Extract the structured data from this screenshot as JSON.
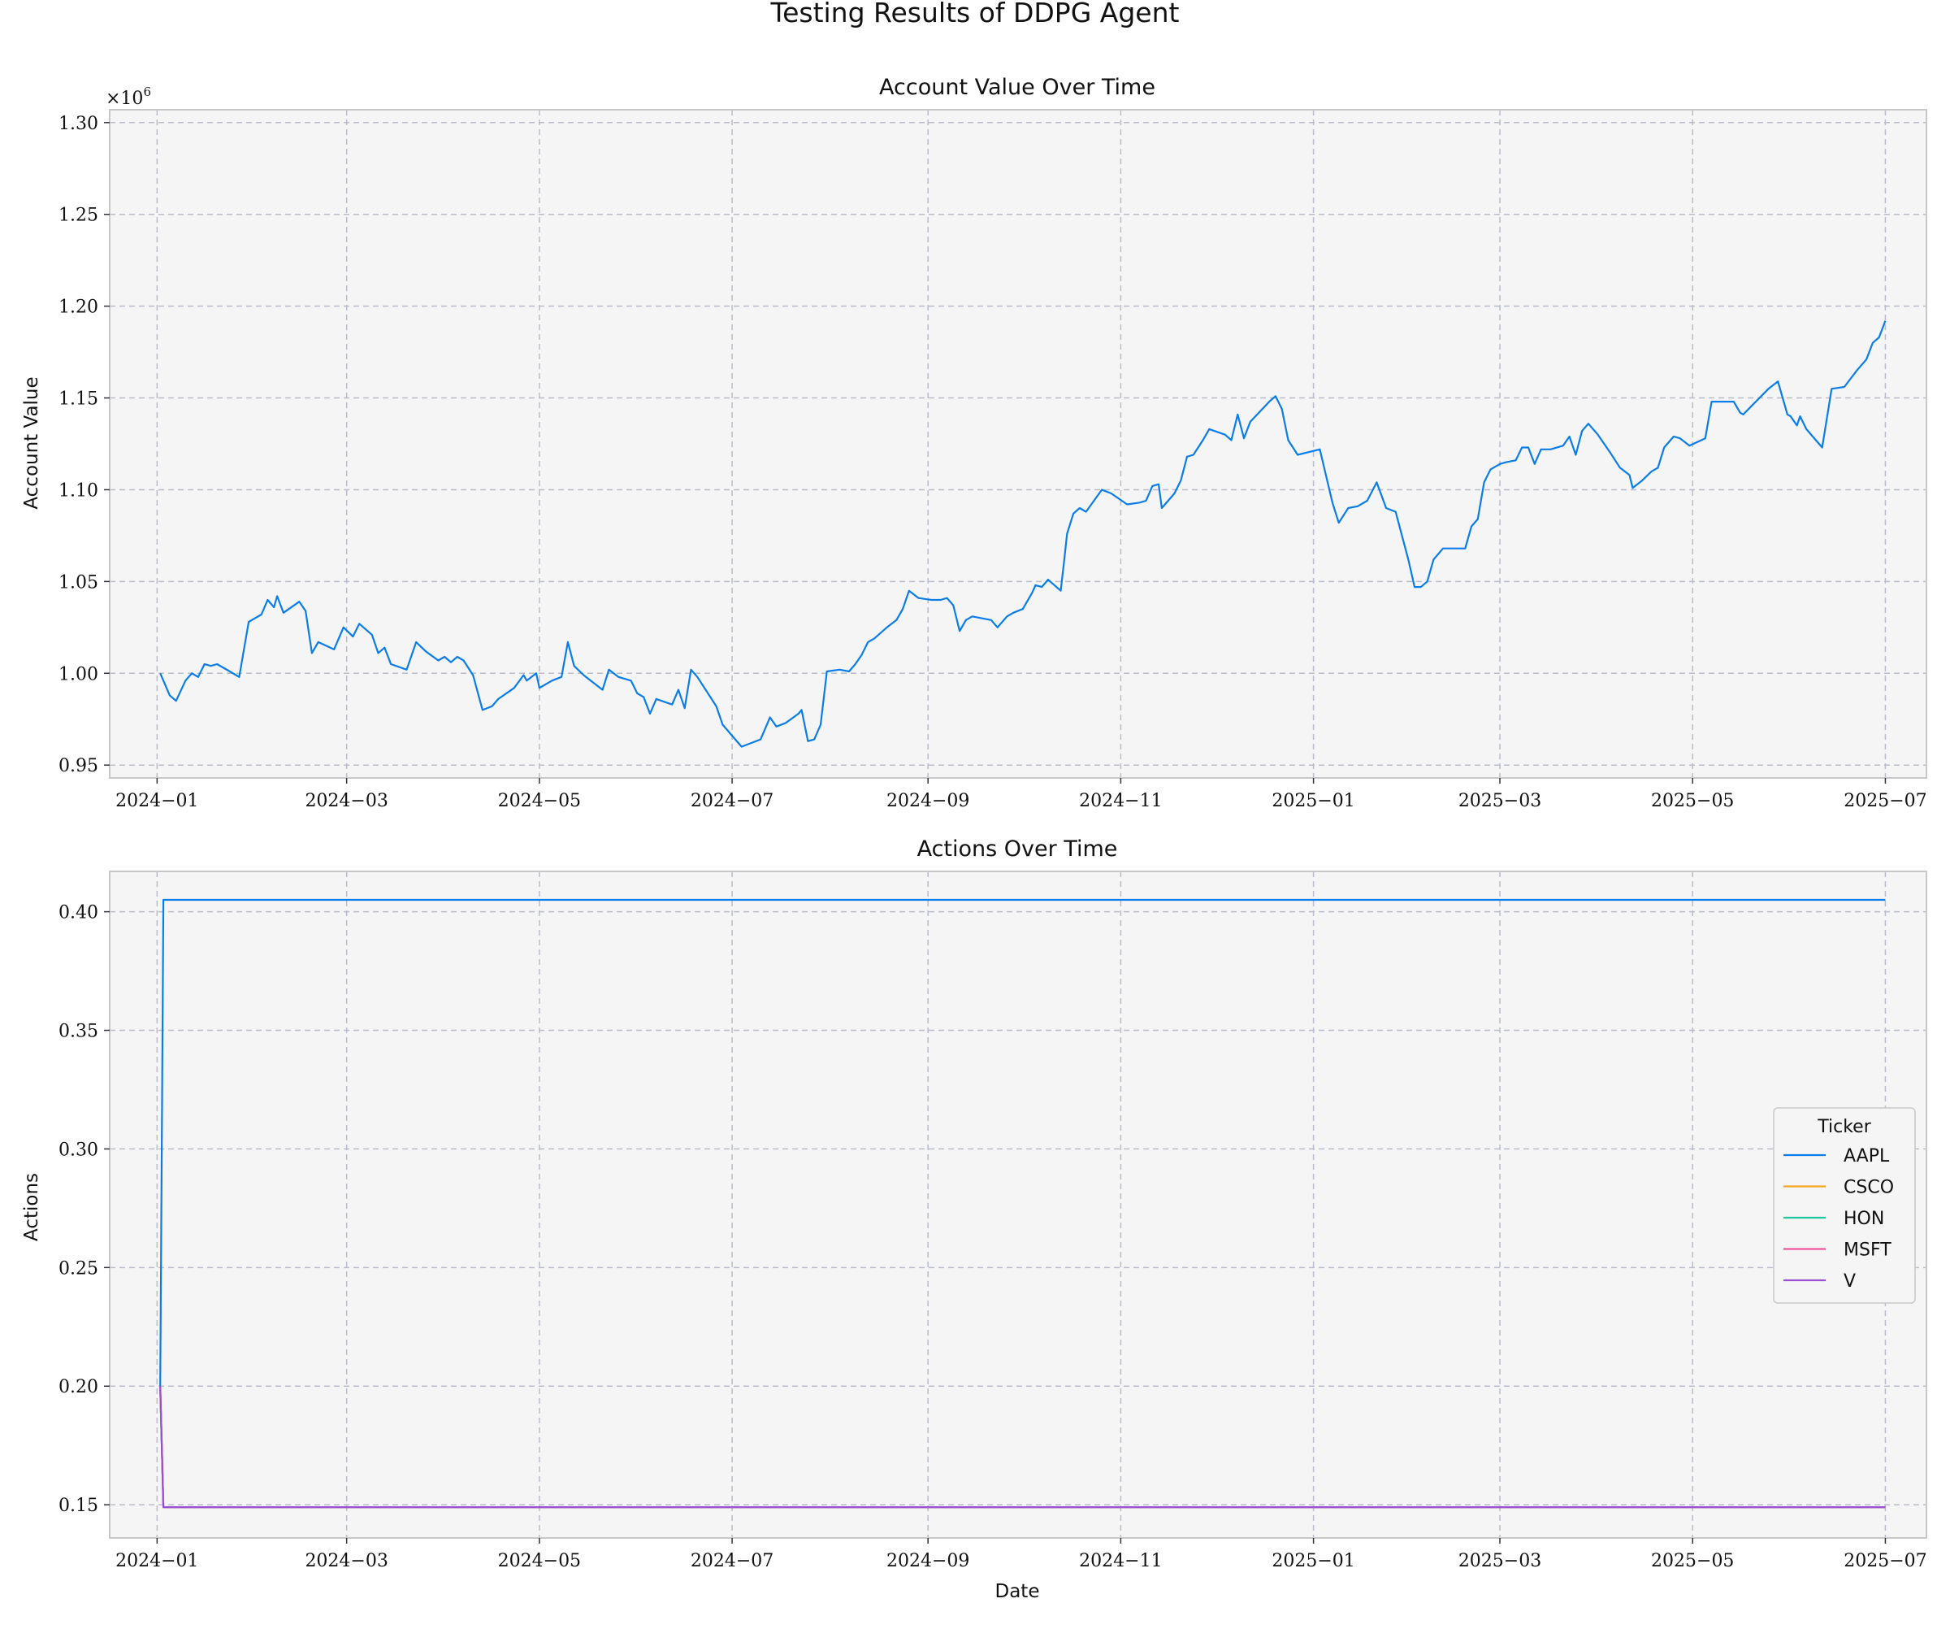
{
  "figure": {
    "title": "Testing Results of DDPG Agent"
  },
  "chart_data": [
    {
      "type": "line",
      "title": "Account Value Over Time",
      "xlabel": "",
      "ylabel": "Account Value",
      "y_multiplier_label": "×10",
      "y_multiplier_exponent": "6",
      "xlim": [
        "2023-12-17",
        "2025-07-14"
      ],
      "ylim": [
        0.943,
        1.307
      ],
      "x_ticks": [
        "2024-01-01",
        "2024-03-01",
        "2024-05-01",
        "2024-07-01",
        "2024-09-01",
        "2024-11-01",
        "2025-01-01",
        "2025-03-01",
        "2025-05-01",
        "2025-07-01"
      ],
      "x_tick_labels": [
        "2024−01",
        "2024−03",
        "2024−05",
        "2024−07",
        "2024−09",
        "2024−11",
        "2025−01",
        "2025−03",
        "2025−05",
        "2025−07"
      ],
      "y_ticks": [
        0.95,
        1.0,
        1.05,
        1.1,
        1.15,
        1.2,
        1.25,
        1.3
      ],
      "y_tick_labels": [
        "0.95",
        "1.00",
        "1.05",
        "1.10",
        "1.15",
        "1.20",
        "1.25",
        "1.30"
      ],
      "grid": true,
      "background": "#f5f5f5",
      "series": [
        {
          "color": "#0b7de8",
          "points": [
            [
              "2024-01-02",
              1.0
            ],
            [
              "2024-01-05",
              0.988
            ],
            [
              "2024-01-07",
              0.985
            ],
            [
              "2024-01-10",
              0.996
            ],
            [
              "2024-01-12",
              1.0
            ],
            [
              "2024-01-14",
              0.998
            ],
            [
              "2024-01-16",
              1.005
            ],
            [
              "2024-01-18",
              1.004
            ],
            [
              "2024-01-20",
              1.005
            ],
            [
              "2024-01-24",
              1.001
            ],
            [
              "2024-01-27",
              0.998
            ],
            [
              "2024-01-30",
              1.028
            ],
            [
              "2024-02-03",
              1.032
            ],
            [
              "2024-02-05",
              1.04
            ],
            [
              "2024-02-07",
              1.036
            ],
            [
              "2024-02-08",
              1.042
            ],
            [
              "2024-02-10",
              1.033
            ],
            [
              "2024-02-15",
              1.039
            ],
            [
              "2024-02-17",
              1.034
            ],
            [
              "2024-02-19",
              1.011
            ],
            [
              "2024-02-21",
              1.017
            ],
            [
              "2024-02-26",
              1.013
            ],
            [
              "2024-02-29",
              1.025
            ],
            [
              "2024-03-03",
              1.02
            ],
            [
              "2024-03-05",
              1.027
            ],
            [
              "2024-03-09",
              1.021
            ],
            [
              "2024-03-11",
              1.011
            ],
            [
              "2024-03-13",
              1.014
            ],
            [
              "2024-03-15",
              1.005
            ],
            [
              "2024-03-20",
              1.002
            ],
            [
              "2024-03-23",
              1.017
            ],
            [
              "2024-03-26",
              1.012
            ],
            [
              "2024-03-30",
              1.007
            ],
            [
              "2024-04-01",
              1.009
            ],
            [
              "2024-04-03",
              1.006
            ],
            [
              "2024-04-05",
              1.009
            ],
            [
              "2024-04-07",
              1.007
            ],
            [
              "2024-04-10",
              0.999
            ],
            [
              "2024-04-13",
              0.98
            ],
            [
              "2024-04-16",
              0.982
            ],
            [
              "2024-04-18",
              0.986
            ],
            [
              "2024-04-23",
              0.992
            ],
            [
              "2024-04-26",
              0.999
            ],
            [
              "2024-04-27",
              0.996
            ],
            [
              "2024-04-30",
              1.0
            ],
            [
              "2024-05-01",
              0.992
            ],
            [
              "2024-05-05",
              0.996
            ],
            [
              "2024-05-08",
              0.998
            ],
            [
              "2024-05-10",
              1.017
            ],
            [
              "2024-05-12",
              1.004
            ],
            [
              "2024-05-15",
              0.999
            ],
            [
              "2024-05-18",
              0.995
            ],
            [
              "2024-05-21",
              0.991
            ],
            [
              "2024-05-23",
              1.002
            ],
            [
              "2024-05-26",
              0.998
            ],
            [
              "2024-05-30",
              0.996
            ],
            [
              "2024-06-01",
              0.989
            ],
            [
              "2024-06-03",
              0.987
            ],
            [
              "2024-06-05",
              0.978
            ],
            [
              "2024-06-07",
              0.986
            ],
            [
              "2024-06-12",
              0.983
            ],
            [
              "2024-06-14",
              0.991
            ],
            [
              "2024-06-16",
              0.981
            ],
            [
              "2024-06-18",
              1.002
            ],
            [
              "2024-06-20",
              0.998
            ],
            [
              "2024-06-26",
              0.982
            ],
            [
              "2024-06-28",
              0.972
            ],
            [
              "2024-07-04",
              0.96
            ],
            [
              "2024-07-10",
              0.964
            ],
            [
              "2024-07-13",
              0.976
            ],
            [
              "2024-07-15",
              0.971
            ],
            [
              "2024-07-18",
              0.973
            ],
            [
              "2024-07-22",
              0.978
            ],
            [
              "2024-07-23",
              0.98
            ],
            [
              "2024-07-25",
              0.963
            ],
            [
              "2024-07-27",
              0.964
            ],
            [
              "2024-07-29",
              0.972
            ],
            [
              "2024-07-31",
              1.001
            ],
            [
              "2024-08-04",
              1.002
            ],
            [
              "2024-08-07",
              1.001
            ],
            [
              "2024-08-09",
              1.005
            ],
            [
              "2024-08-11",
              1.01
            ],
            [
              "2024-08-13",
              1.017
            ],
            [
              "2024-08-15",
              1.019
            ],
            [
              "2024-08-19",
              1.025
            ],
            [
              "2024-08-22",
              1.029
            ],
            [
              "2024-08-24",
              1.035
            ],
            [
              "2024-08-26",
              1.045
            ],
            [
              "2024-08-29",
              1.041
            ],
            [
              "2024-09-02",
              1.04
            ],
            [
              "2024-09-05",
              1.04
            ],
            [
              "2024-09-07",
              1.041
            ],
            [
              "2024-09-09",
              1.037
            ],
            [
              "2024-09-11",
              1.023
            ],
            [
              "2024-09-13",
              1.029
            ],
            [
              "2024-09-15",
              1.031
            ],
            [
              "2024-09-21",
              1.029
            ],
            [
              "2024-09-23",
              1.025
            ],
            [
              "2024-09-26",
              1.031
            ],
            [
              "2024-09-28",
              1.033
            ],
            [
              "2024-10-01",
              1.035
            ],
            [
              "2024-10-04",
              1.044
            ],
            [
              "2024-10-05",
              1.048
            ],
            [
              "2024-10-07",
              1.047
            ],
            [
              "2024-10-09",
              1.051
            ],
            [
              "2024-10-13",
              1.045
            ],
            [
              "2024-10-14",
              1.06
            ],
            [
              "2024-10-15",
              1.076
            ],
            [
              "2024-10-17",
              1.087
            ],
            [
              "2024-10-19",
              1.09
            ],
            [
              "2024-10-21",
              1.088
            ],
            [
              "2024-10-26",
              1.1
            ],
            [
              "2024-10-29",
              1.098
            ],
            [
              "2024-11-03",
              1.092
            ],
            [
              "2024-11-07",
              1.093
            ],
            [
              "2024-11-09",
              1.094
            ],
            [
              "2024-11-11",
              1.102
            ],
            [
              "2024-11-13",
              1.103
            ],
            [
              "2024-11-14",
              1.09
            ],
            [
              "2024-11-18",
              1.098
            ],
            [
              "2024-11-20",
              1.105
            ],
            [
              "2024-11-22",
              1.118
            ],
            [
              "2024-11-24",
              1.119
            ],
            [
              "2024-11-27",
              1.127
            ],
            [
              "2024-11-29",
              1.133
            ],
            [
              "2024-12-04",
              1.13
            ],
            [
              "2024-12-06",
              1.127
            ],
            [
              "2024-12-08",
              1.141
            ],
            [
              "2024-12-10",
              1.128
            ],
            [
              "2024-12-12",
              1.137
            ],
            [
              "2024-12-18",
              1.148
            ],
            [
              "2024-12-20",
              1.151
            ],
            [
              "2024-12-22",
              1.144
            ],
            [
              "2024-12-24",
              1.127
            ],
            [
              "2024-12-27",
              1.119
            ],
            [
              "2025-01-03",
              1.122
            ],
            [
              "2025-01-07",
              1.093
            ],
            [
              "2025-01-09",
              1.082
            ],
            [
              "2025-01-12",
              1.09
            ],
            [
              "2025-01-15",
              1.091
            ],
            [
              "2025-01-18",
              1.094
            ],
            [
              "2025-01-21",
              1.104
            ],
            [
              "2025-01-24",
              1.09
            ],
            [
              "2025-01-27",
              1.088
            ],
            [
              "2025-01-31",
              1.062
            ],
            [
              "2025-02-02",
              1.047
            ],
            [
              "2025-02-04",
              1.047
            ],
            [
              "2025-02-06",
              1.05
            ],
            [
              "2025-02-08",
              1.062
            ],
            [
              "2025-02-11",
              1.068
            ],
            [
              "2025-02-18",
              1.068
            ],
            [
              "2025-02-20",
              1.08
            ],
            [
              "2025-02-22",
              1.084
            ],
            [
              "2025-02-24",
              1.104
            ],
            [
              "2025-02-26",
              1.111
            ],
            [
              "2025-03-01",
              1.114
            ],
            [
              "2025-03-03",
              1.115
            ],
            [
              "2025-03-06",
              1.116
            ],
            [
              "2025-03-08",
              1.123
            ],
            [
              "2025-03-10",
              1.123
            ],
            [
              "2025-03-12",
              1.114
            ],
            [
              "2025-03-14",
              1.122
            ],
            [
              "2025-03-17",
              1.122
            ],
            [
              "2025-03-21",
              1.124
            ],
            [
              "2025-03-23",
              1.129
            ],
            [
              "2025-03-25",
              1.119
            ],
            [
              "2025-03-27",
              1.132
            ],
            [
              "2025-03-29",
              1.136
            ],
            [
              "2025-04-01",
              1.13
            ],
            [
              "2025-04-05",
              1.12
            ],
            [
              "2025-04-08",
              1.112
            ],
            [
              "2025-04-11",
              1.108
            ],
            [
              "2025-04-12",
              1.101
            ],
            [
              "2025-04-15",
              1.105
            ],
            [
              "2025-04-18",
              1.11
            ],
            [
              "2025-04-20",
              1.112
            ],
            [
              "2025-04-22",
              1.123
            ],
            [
              "2025-04-25",
              1.129
            ],
            [
              "2025-04-27",
              1.128
            ],
            [
              "2025-04-30",
              1.124
            ],
            [
              "2025-05-05",
              1.128
            ],
            [
              "2025-05-07",
              1.148
            ],
            [
              "2025-05-11",
              1.148
            ],
            [
              "2025-05-14",
              1.148
            ],
            [
              "2025-05-16",
              1.142
            ],
            [
              "2025-05-17",
              1.141
            ],
            [
              "2025-05-21",
              1.148
            ],
            [
              "2025-05-25",
              1.155
            ],
            [
              "2025-05-28",
              1.159
            ],
            [
              "2025-05-31",
              1.141
            ],
            [
              "2025-06-01",
              1.14
            ],
            [
              "2025-06-03",
              1.135
            ],
            [
              "2025-06-04",
              1.14
            ],
            [
              "2025-06-06",
              1.133
            ],
            [
              "2025-06-09",
              1.127
            ],
            [
              "2025-06-11",
              1.123
            ],
            [
              "2025-06-14",
              1.155
            ],
            [
              "2025-06-18",
              1.156
            ],
            [
              "2025-06-22",
              1.165
            ],
            [
              "2025-06-25",
              1.171
            ],
            [
              "2025-06-27",
              1.18
            ],
            [
              "2025-06-29",
              1.183
            ],
            [
              "2025-07-01",
              1.192
            ]
          ]
        }
      ]
    },
    {
      "type": "line",
      "title": "Actions Over Time",
      "xlabel": "Date",
      "ylabel": "Actions",
      "xlim": [
        "2023-12-17",
        "2025-07-14"
      ],
      "ylim": [
        0.136,
        0.417
      ],
      "x_ticks": [
        "2024-01-01",
        "2024-03-01",
        "2024-05-01",
        "2024-07-01",
        "2024-09-01",
        "2024-11-01",
        "2025-01-01",
        "2025-03-01",
        "2025-05-01",
        "2025-07-01"
      ],
      "x_tick_labels": [
        "2024−01",
        "2024−03",
        "2024−05",
        "2024−07",
        "2024−09",
        "2024−11",
        "2025−01",
        "2025−03",
        "2025−05",
        "2025−07"
      ],
      "y_ticks": [
        0.15,
        0.2,
        0.25,
        0.3,
        0.35,
        0.4
      ],
      "y_tick_labels": [
        "0.15",
        "0.20",
        "0.25",
        "0.30",
        "0.35",
        "0.40"
      ],
      "grid": true,
      "background": "#f5f5f5",
      "legend": {
        "title": "Ticker",
        "placement": "center-right"
      },
      "series": [
        {
          "name": "AAPL",
          "color": "#0b7de8",
          "points": [
            [
              "2024-01-02",
              0.2
            ],
            [
              "2024-01-03",
              0.405
            ],
            [
              "2025-07-01",
              0.405
            ]
          ]
        },
        {
          "name": "CSCO",
          "color": "#f5a623",
          "points": [
            [
              "2024-01-02",
              0.2
            ],
            [
              "2024-01-03",
              0.149
            ],
            [
              "2025-07-01",
              0.149
            ]
          ]
        },
        {
          "name": "HON",
          "color": "#1fc8a0",
          "points": [
            [
              "2024-01-02",
              0.2
            ],
            [
              "2024-01-03",
              0.149
            ],
            [
              "2025-07-01",
              0.149
            ]
          ]
        },
        {
          "name": "MSFT",
          "color": "#f0569c",
          "points": [
            [
              "2024-01-02",
              0.2
            ],
            [
              "2024-01-03",
              0.149
            ],
            [
              "2025-07-01",
              0.149
            ]
          ]
        },
        {
          "name": "V",
          "color": "#9b4fd3",
          "points": [
            [
              "2024-01-02",
              0.2
            ],
            [
              "2024-01-03",
              0.149
            ],
            [
              "2025-07-01",
              0.149
            ]
          ]
        }
      ]
    }
  ]
}
